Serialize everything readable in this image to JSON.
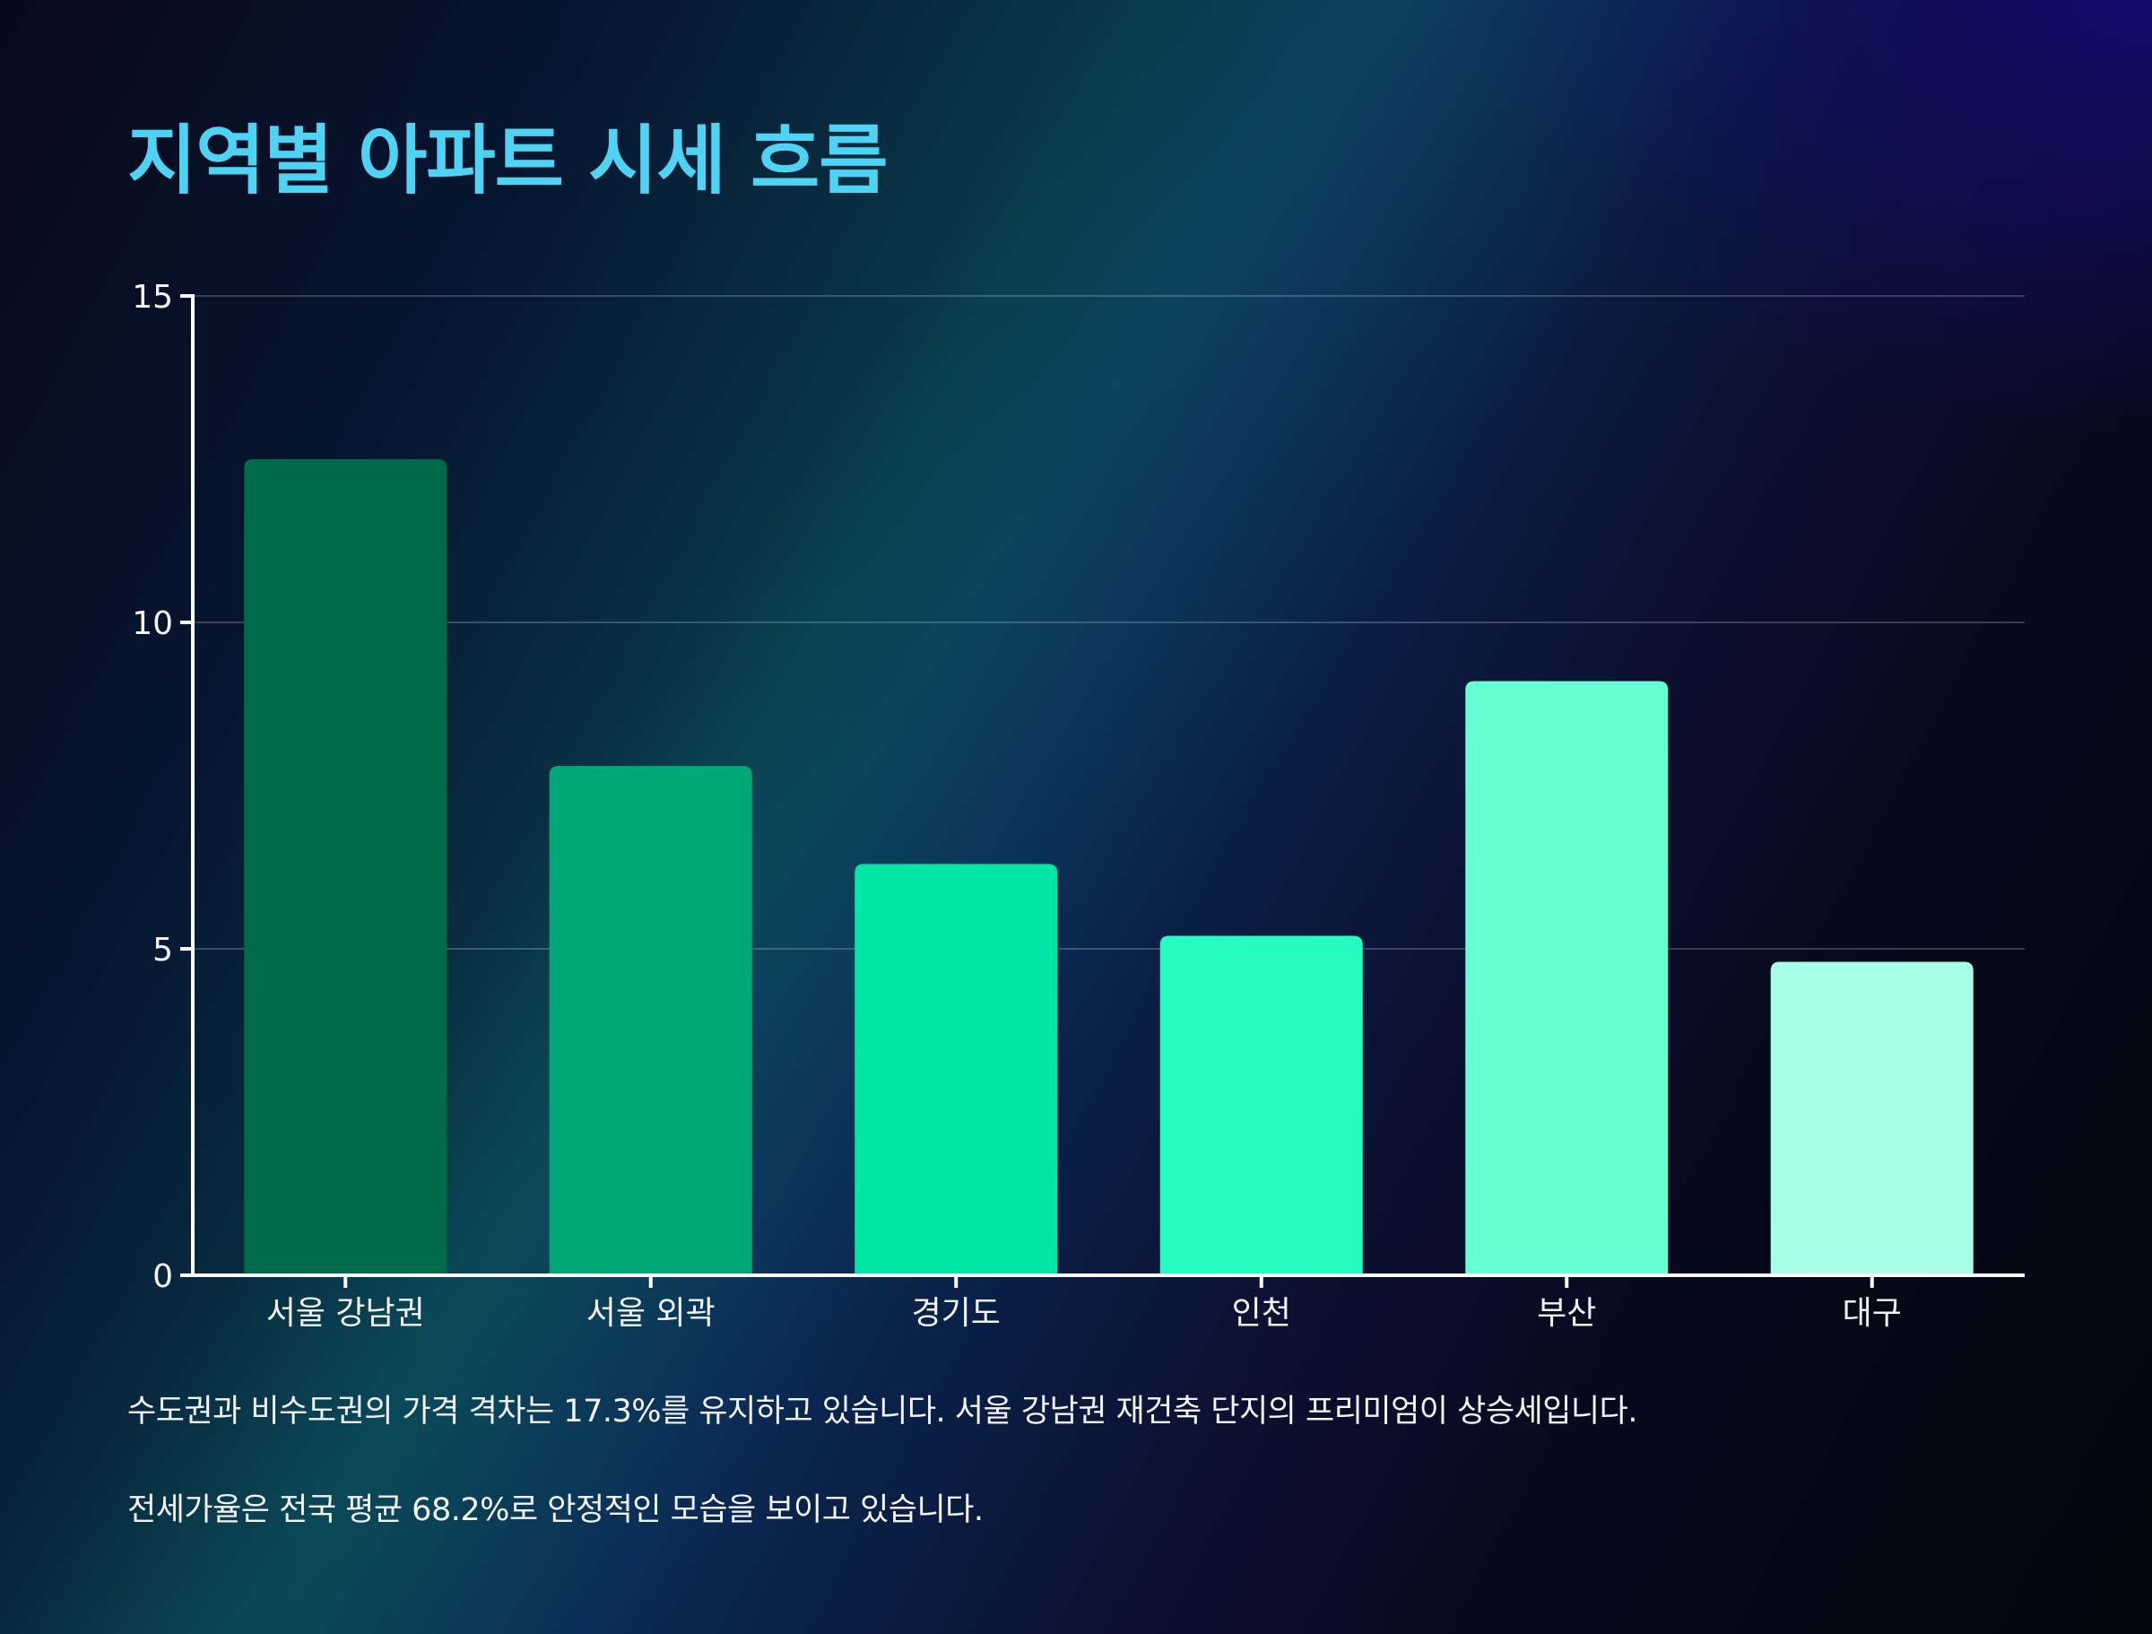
{
  "title": "지역별 아파트 시세 흐름",
  "chart_data": {
    "type": "bar",
    "categories": [
      "서울 강남권",
      "서울 외곽",
      "경기도",
      "인천",
      "부산",
      "대구"
    ],
    "values": [
      12.5,
      7.8,
      6.3,
      5.2,
      9.1,
      4.8
    ],
    "ylim": [
      0,
      15
    ],
    "yticks": [
      0,
      5,
      10,
      15
    ],
    "grid": true,
    "colors": [
      "#006b4a",
      "#00a878",
      "#00e6a5",
      "#25fcc1",
      "#66ffd4",
      "#a6ffe6"
    ]
  },
  "notes": [
    "수도권과 비수도권의 가격 격차는 17.3%를 유지하고 있습니다. 서울 강남권 재건축 단지의 프리미엄이 상승세입니다.",
    "전세가율은 전국 평균 68.2%로 안정적인 모습을 보이고 있습니다."
  ]
}
